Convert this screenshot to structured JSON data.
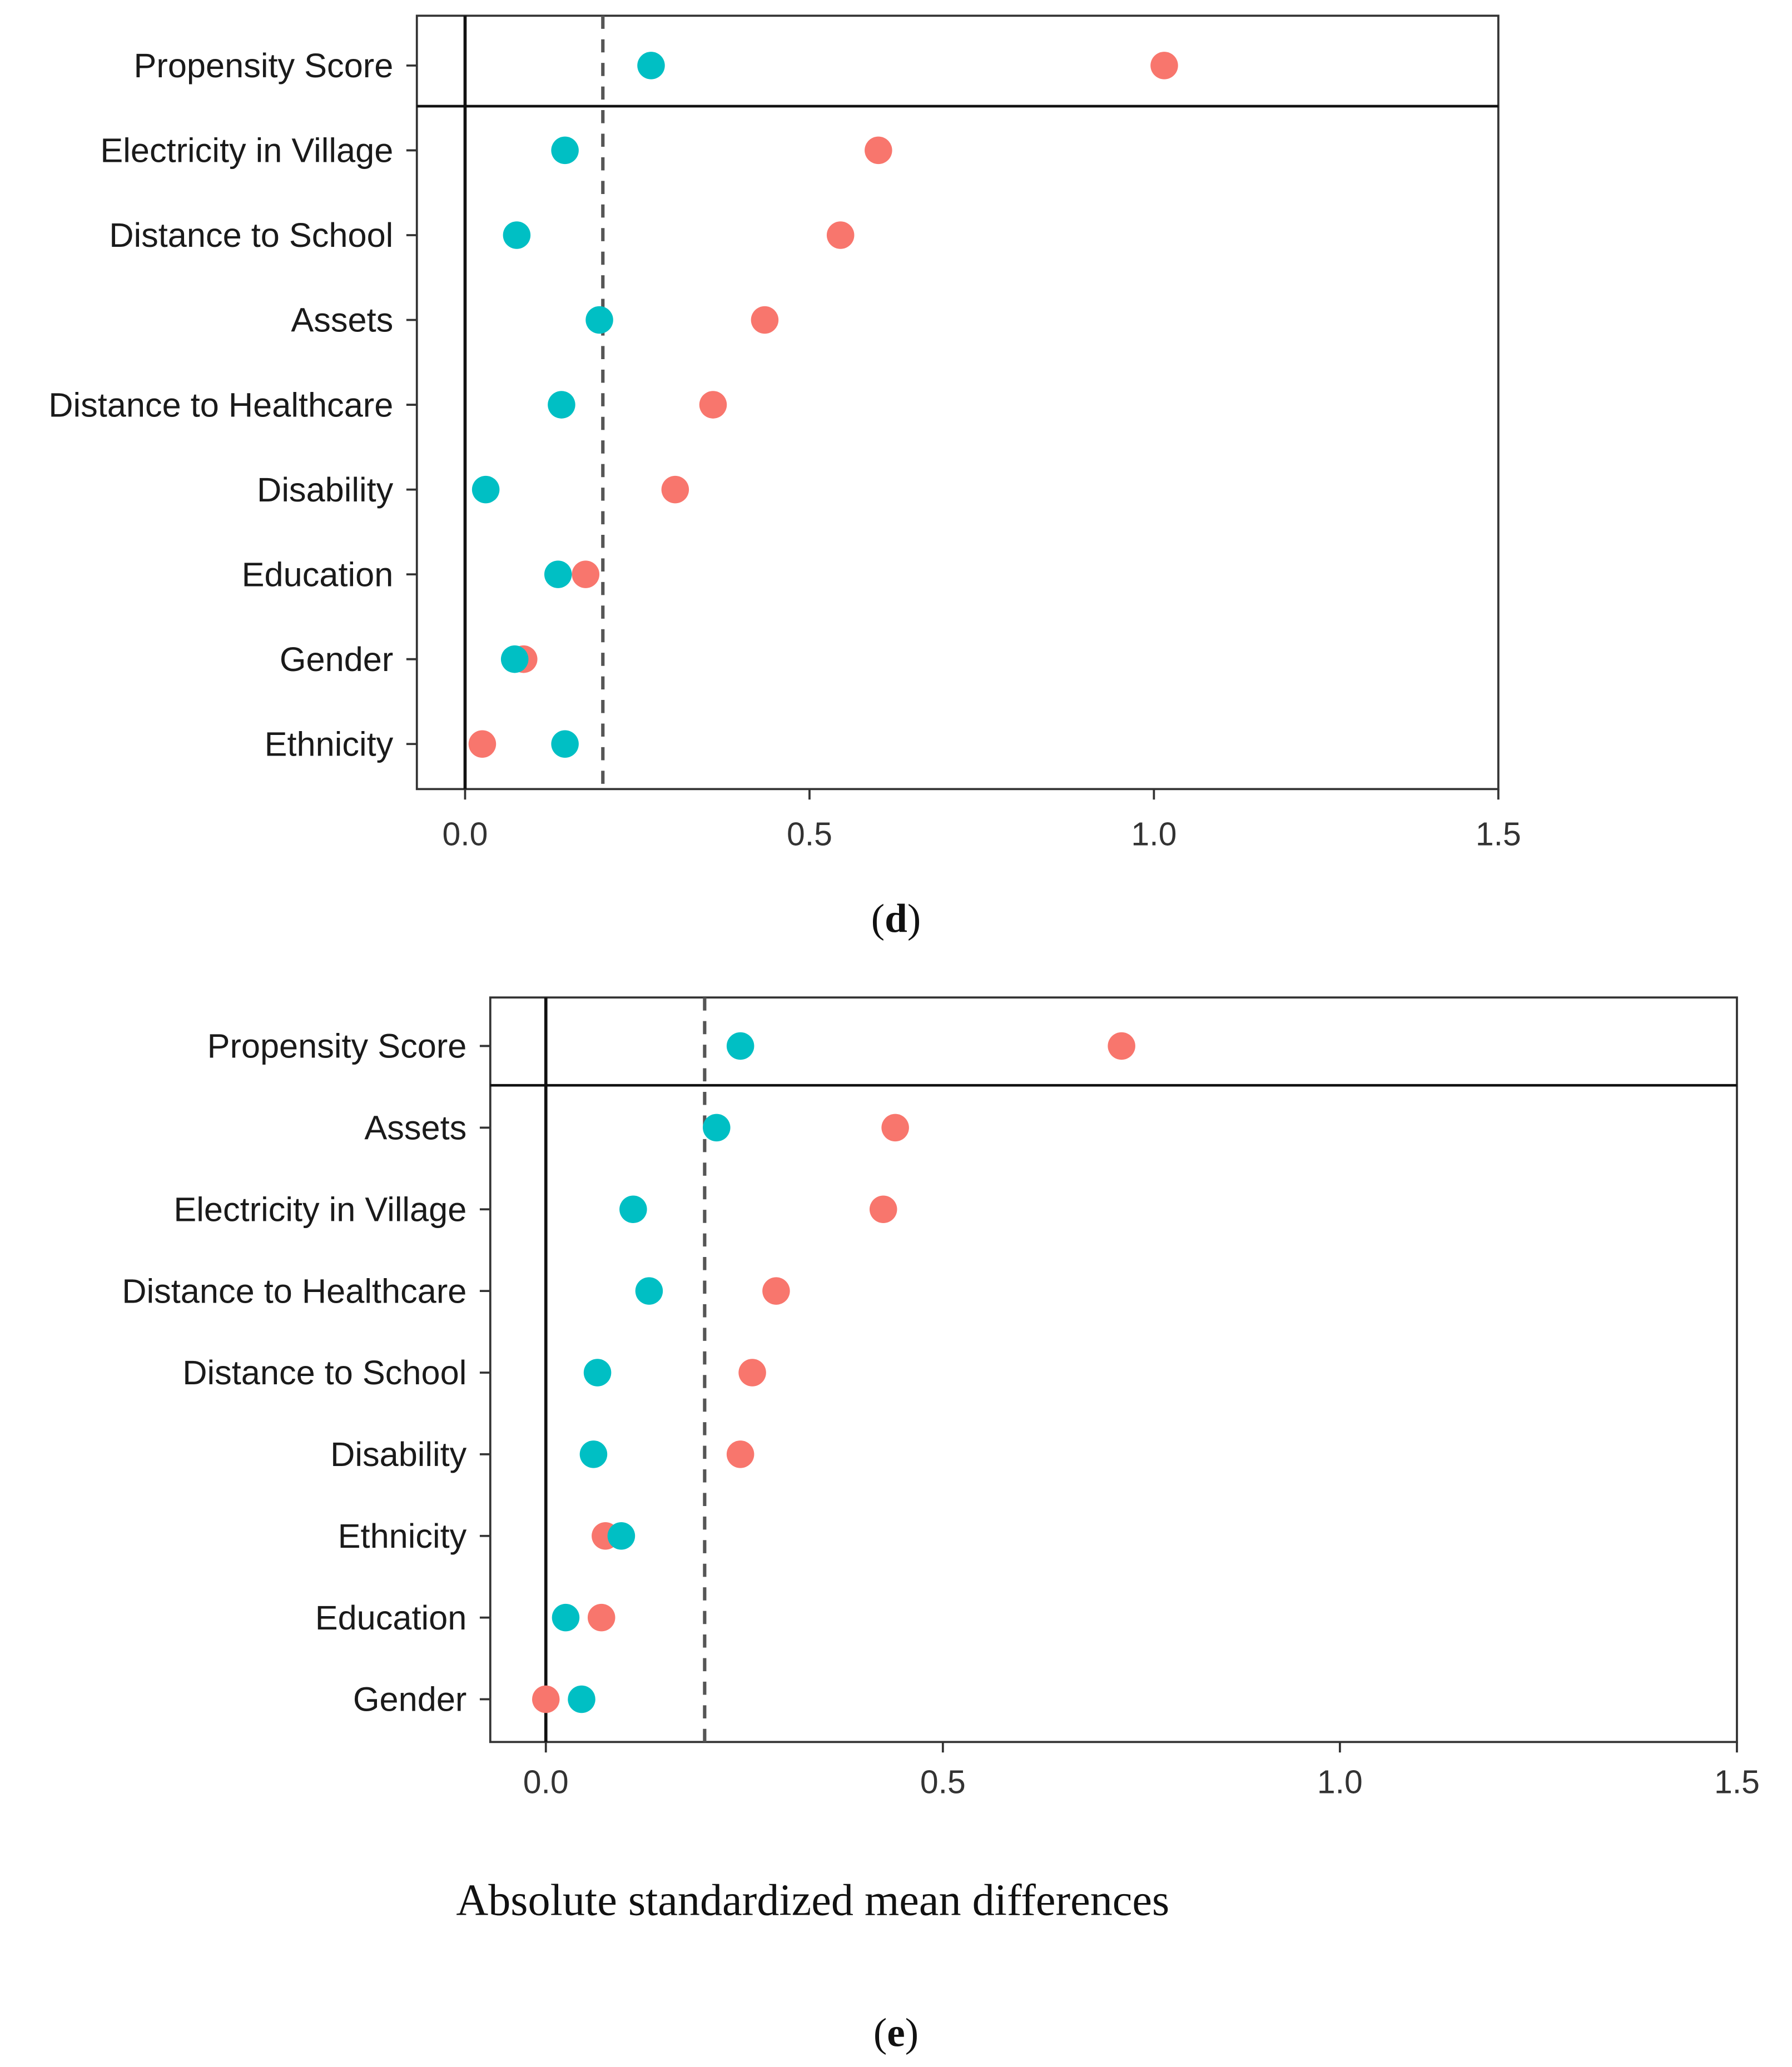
{
  "chart_data": [
    {
      "type": "scatter",
      "panel_label": "d",
      "xlabel": "",
      "ylabel": "",
      "xlim": [
        -0.07,
        1.5
      ],
      "xticks": [
        "0.0",
        "0.5",
        "1.0",
        "1.5"
      ],
      "xtick_values": [
        0,
        0.5,
        1.0,
        1.5
      ],
      "threshold_line": 0.2,
      "zero_line": 0,
      "grid": false,
      "legend": "none",
      "categories": [
        "Propensity Score",
        "Electricity in Village",
        "Distance to School",
        "Assets",
        "Distance to Healthcare",
        "Disability",
        "Education",
        "Gender",
        "Ethnicity"
      ],
      "separator_after": "Propensity Score",
      "series": [
        {
          "color": "#F8766D",
          "values": [
            1.015,
            0.6,
            0.545,
            0.435,
            0.36,
            0.305,
            0.175,
            0.085,
            0.025
          ]
        },
        {
          "color": "#00BFC4",
          "values": [
            0.27,
            0.145,
            0.075,
            0.195,
            0.14,
            0.03,
            0.135,
            0.072,
            0.145
          ]
        }
      ]
    },
    {
      "type": "scatter",
      "panel_label": "e",
      "xlabel": "Absolute standardized mean differences",
      "ylabel": "",
      "xlim": [
        -0.07,
        1.5
      ],
      "xticks": [
        "0.0",
        "0.5",
        "1.0",
        "1.5"
      ],
      "xtick_values": [
        0,
        0.5,
        1.0,
        1.5
      ],
      "threshold_line": 0.2,
      "zero_line": 0,
      "grid": false,
      "legend": "none",
      "categories": [
        "Propensity Score",
        "Assets",
        "Electricity in Village",
        "Distance to Healthcare",
        "Distance to School",
        "Disability",
        "Ethnicity",
        "Education",
        "Gender"
      ],
      "separator_after": "Propensity Score",
      "series": [
        {
          "color": "#F8766D",
          "values": [
            0.725,
            0.44,
            0.425,
            0.29,
            0.26,
            0.245,
            0.075,
            0.07,
            0.0
          ]
        },
        {
          "color": "#00BFC4",
          "values": [
            0.245,
            0.215,
            0.11,
            0.13,
            0.065,
            0.06,
            0.095,
            0.025,
            0.045
          ]
        }
      ]
    }
  ],
  "captions": {
    "d_open": "(",
    "d_letter": "d",
    "d_close": ")",
    "e_open": "(",
    "e_letter": "e",
    "e_close": ")"
  }
}
